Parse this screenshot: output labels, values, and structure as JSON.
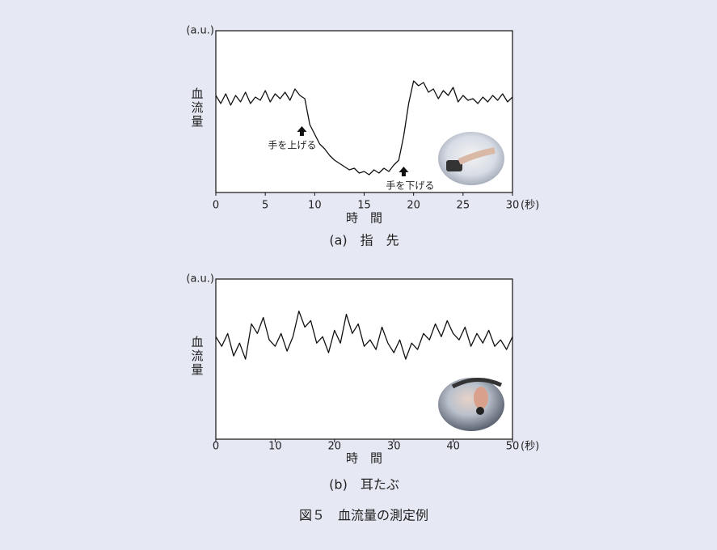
{
  "figure_caption": "図５　血流量の測定例",
  "chart_data": [
    {
      "type": "line",
      "subcaption": "(a)　指　先",
      "ylabel": "血流量",
      "yunit": "(a.u.)",
      "xlabel": "時　間",
      "xunit": "(秒)",
      "xlim": [
        0,
        30
      ],
      "xticks": [
        0,
        5,
        10,
        15,
        20,
        25,
        30
      ],
      "ylim": [
        0,
        100
      ],
      "color": "#111111",
      "x": [
        0,
        0.5,
        1,
        1.5,
        2,
        2.5,
        3,
        3.5,
        4,
        4.5,
        5,
        5.5,
        6,
        6.5,
        7,
        7.5,
        8,
        8.5,
        9,
        9.5,
        10,
        10.5,
        11,
        11.5,
        12,
        12.5,
        13,
        13.5,
        14,
        14.5,
        15,
        15.5,
        16,
        16.5,
        17,
        17.5,
        18,
        18.5,
        19,
        19.5,
        20,
        20.5,
        21,
        21.5,
        22,
        22.5,
        23,
        23.5,
        24,
        24.5,
        25,
        25.5,
        26,
        26.5,
        27,
        27.5,
        28,
        28.5,
        29,
        29.5,
        30
      ],
      "values": [
        60,
        55,
        61,
        54,
        60,
        56,
        62,
        55,
        59,
        57,
        63,
        56,
        61,
        58,
        62,
        57,
        64,
        60,
        58,
        42,
        36,
        30,
        27,
        23,
        20,
        18,
        16,
        14,
        15,
        12,
        13,
        11,
        14,
        12,
        15,
        13,
        17,
        20,
        35,
        55,
        69,
        66,
        68,
        62,
        64,
        58,
        63,
        60,
        65,
        56,
        60,
        57,
        58,
        55,
        59,
        56,
        60,
        57,
        61,
        56,
        59
      ],
      "annotations": [
        {
          "text": "手を上げる",
          "x": 8.7
        },
        {
          "text": "手を下げる",
          "x": 19.0
        }
      ]
    },
    {
      "type": "line",
      "subcaption": "(b)　耳たぶ",
      "ylabel": "血流量",
      "yunit": "(a.u.)",
      "xlabel": "時　間",
      "xunit": "(秒)",
      "xlim": [
        0,
        50
      ],
      "xticks": [
        0,
        10,
        20,
        30,
        40,
        50
      ],
      "ylim": [
        0,
        100
      ],
      "color": "#111111",
      "x": [
        0,
        1,
        2,
        3,
        4,
        5,
        6,
        7,
        8,
        9,
        10,
        11,
        12,
        13,
        14,
        15,
        16,
        17,
        18,
        19,
        20,
        21,
        22,
        23,
        24,
        25,
        26,
        27,
        28,
        29,
        30,
        31,
        32,
        33,
        34,
        35,
        36,
        37,
        38,
        39,
        40,
        41,
        42,
        43,
        44,
        45,
        46,
        47,
        48,
        49,
        50
      ],
      "values": [
        64,
        58,
        66,
        52,
        60,
        50,
        72,
        66,
        76,
        62,
        58,
        66,
        55,
        64,
        80,
        70,
        74,
        60,
        64,
        54,
        68,
        60,
        78,
        66,
        72,
        58,
        62,
        56,
        70,
        60,
        54,
        62,
        50,
        60,
        56,
        66,
        62,
        72,
        64,
        74,
        66,
        62,
        70,
        58,
        66,
        60,
        68,
        58,
        62,
        56,
        64
      ],
      "annotations": []
    }
  ]
}
